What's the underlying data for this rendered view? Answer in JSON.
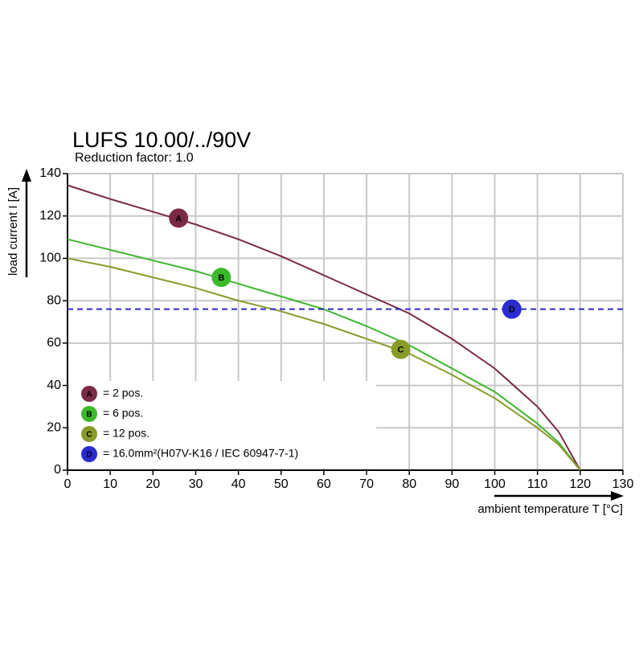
{
  "chart_data": {
    "type": "line",
    "title": "LUFS 10.00/../90V",
    "subtitle": "Reduction factor: 1.0",
    "y_label": "load current I [A]",
    "x_label": "ambient temperature T [°C]",
    "xlim": [
      0,
      130
    ],
    "xticks": [
      0,
      10,
      20,
      30,
      40,
      50,
      60,
      70,
      80,
      90,
      100,
      110,
      120,
      130
    ],
    "ylim": [
      0,
      140
    ],
    "yticks": [
      0,
      20,
      40,
      60,
      80,
      100,
      120,
      140
    ],
    "grid": true,
    "series": [
      {
        "name": "= 2 pos.",
        "color": "#7b2a45",
        "style": "solid",
        "x": [
          0,
          10,
          20,
          30,
          40,
          50,
          60,
          70,
          80,
          90,
          100,
          110,
          115,
          120
        ],
        "values": [
          134.5,
          128,
          122,
          116,
          109,
          101,
          92,
          83,
          74,
          62,
          48,
          30,
          18,
          0
        ],
        "marker": {
          "label": "A",
          "x": 26,
          "y": 119
        }
      },
      {
        "name": "= 6 pos.",
        "color": "#3cb82c",
        "style": "solid",
        "x": [
          0,
          10,
          20,
          30,
          40,
          50,
          60,
          70,
          80,
          90,
          100,
          110,
          115,
          120
        ],
        "values": [
          109,
          104,
          99,
          94,
          88,
          82,
          76,
          68,
          59,
          48,
          37,
          22,
          13,
          0
        ],
        "marker": {
          "label": "B",
          "x": 36,
          "y": 91
        }
      },
      {
        "name": "= 12 pos.",
        "color": "#8a9a2a",
        "style": "solid",
        "x": [
          0,
          10,
          20,
          30,
          40,
          50,
          60,
          70,
          80,
          90,
          100,
          110,
          115,
          120
        ],
        "values": [
          100,
          96,
          91,
          86,
          80,
          75,
          69,
          62,
          55,
          45,
          34,
          20,
          12,
          0
        ],
        "marker": {
          "label": "C",
          "x": 78,
          "y": 57
        }
      },
      {
        "name": "= 16.0mm²(H07V-K16 / IEC 60947-7-1)",
        "color": "#2b2bd0",
        "style": "dashed",
        "x": [
          0,
          130
        ],
        "values": [
          76,
          76
        ],
        "marker": {
          "label": "D",
          "x": 104,
          "y": 76
        }
      }
    ]
  }
}
